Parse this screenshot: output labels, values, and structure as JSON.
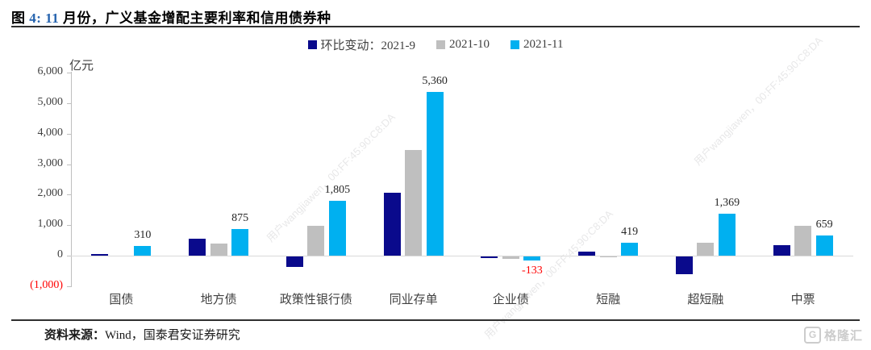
{
  "header": {
    "title_segments": [
      {
        "text": "图 ",
        "color": "#000000"
      },
      {
        "text": "4: ",
        "color": "#2563ae"
      },
      {
        "text": "11",
        "color": "#2563ae"
      },
      {
        "text": " 月份，广义基金增配主要利率和信用债券种",
        "color": "#000000"
      }
    ]
  },
  "legend": {
    "series_label": "环比变动：",
    "items": [
      {
        "label": "2021-9",
        "color": "#0a0a8c"
      },
      {
        "label": "2021-10",
        "color": "#bfbfbf"
      },
      {
        "label": "2021-11",
        "color": "#00b0f0"
      }
    ]
  },
  "chart_data": {
    "type": "bar",
    "unit_label": "亿元",
    "categories": [
      "国债",
      "地方债",
      "政策性银行债",
      "同业存单",
      "企业债",
      "短融",
      "超短融",
      "中票"
    ],
    "series": [
      {
        "name": "2021-9",
        "color": "#0a0a8c",
        "values": [
          60,
          550,
          -350,
          2050,
          -55,
          140,
          -580,
          345
        ]
      },
      {
        "name": "2021-10",
        "color": "#bfbfbf",
        "values": [
          0,
          390,
          980,
          3470,
          -90,
          -20,
          430,
          975
        ]
      },
      {
        "name": "2021-11",
        "color": "#00b0f0",
        "values": [
          310,
          875,
          1805,
          5360,
          -133,
          419,
          1369,
          659
        ],
        "labels": [
          "310",
          "875",
          "1,805",
          "5,360",
          "-133",
          "419",
          "1,369",
          "659"
        ]
      }
    ],
    "ylim": [
      -1000,
      6000
    ],
    "yticks": [
      {
        "v": 6000,
        "label": "6,000",
        "color": "#404040"
      },
      {
        "v": 5000,
        "label": "5,000",
        "color": "#404040"
      },
      {
        "v": 4000,
        "label": "4,000",
        "color": "#404040"
      },
      {
        "v": 3000,
        "label": "3,000",
        "color": "#404040"
      },
      {
        "v": 2000,
        "label": "2,000",
        "color": "#404040"
      },
      {
        "v": 1000,
        "label": "1,000",
        "color": "#404040"
      },
      {
        "v": 0,
        "label": "0",
        "color": "#404040"
      },
      {
        "v": -1000,
        "label": "(1,000)",
        "color": "#ff0000"
      }
    ],
    "negative_label_color": "#ff0000",
    "grid": false,
    "legend_position": "top-center"
  },
  "footer": {
    "source_label": "资料来源：",
    "source_text": "Wind，国泰君安证券研究"
  },
  "watermark": {
    "text": "用户wangjiawen，00:FF:45:90:C8:DA"
  },
  "logo": {
    "glyph": "G",
    "text": "格隆汇"
  }
}
